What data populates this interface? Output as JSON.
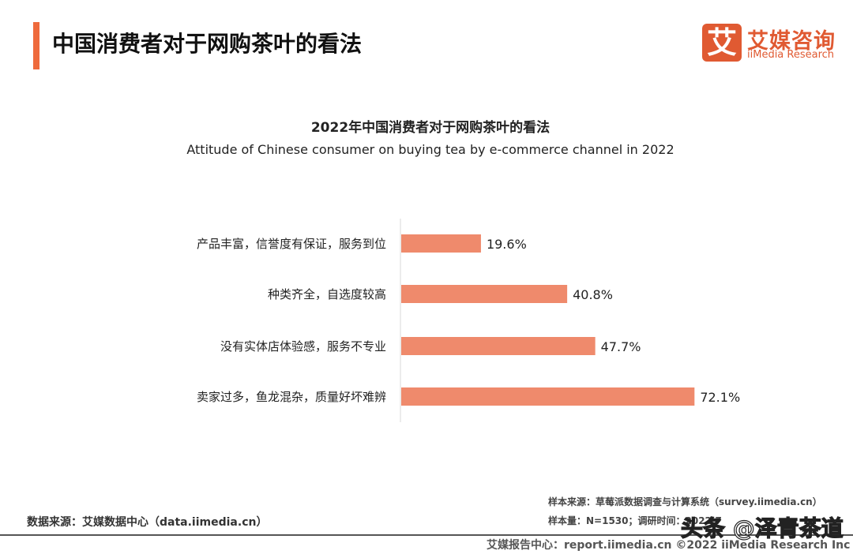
{
  "header": {
    "title": "中国消费者对于网购茶叶的看法",
    "accent_color": "#ee6a3c"
  },
  "logo": {
    "mark": "艾",
    "cn": "艾媒咨询",
    "en": "iiMedia Research",
    "color": "#e05a32"
  },
  "chart_data": {
    "type": "bar",
    "orientation": "horizontal",
    "title": "2022年中国消费者对于网购茶叶的看法",
    "subtitle": "Attitude of Chinese consumer on buying tea by e-commerce channel in 2022",
    "categories": [
      "产品丰富，信誉度有保证，服务到位",
      "种类齐全，自选度较高",
      "没有实体店体验感，服务不专业",
      "卖家过多，鱼龙混杂，质量好坏难辨"
    ],
    "values": [
      19.6,
      40.8,
      47.7,
      72.1
    ],
    "labels": [
      "19.6%",
      "40.8%",
      "47.7%",
      "72.1%"
    ],
    "unit": "%",
    "bar_color": "#ef8a6c",
    "grid": false
  },
  "footer": {
    "source_left": "数据来源：艾媒数据中心（data.iimedia.cn）",
    "sample_source": "样本来源：草莓派数据调查与计算系统（survey.iimedia.cn）",
    "sample_size": "样本量：N=1530；调研时间：2022.7",
    "report": "艾媒报告中心：report.iimedia.cn   ©2022  iiMedia Research  Inc",
    "watermark": "头条 @泽青茶道"
  }
}
